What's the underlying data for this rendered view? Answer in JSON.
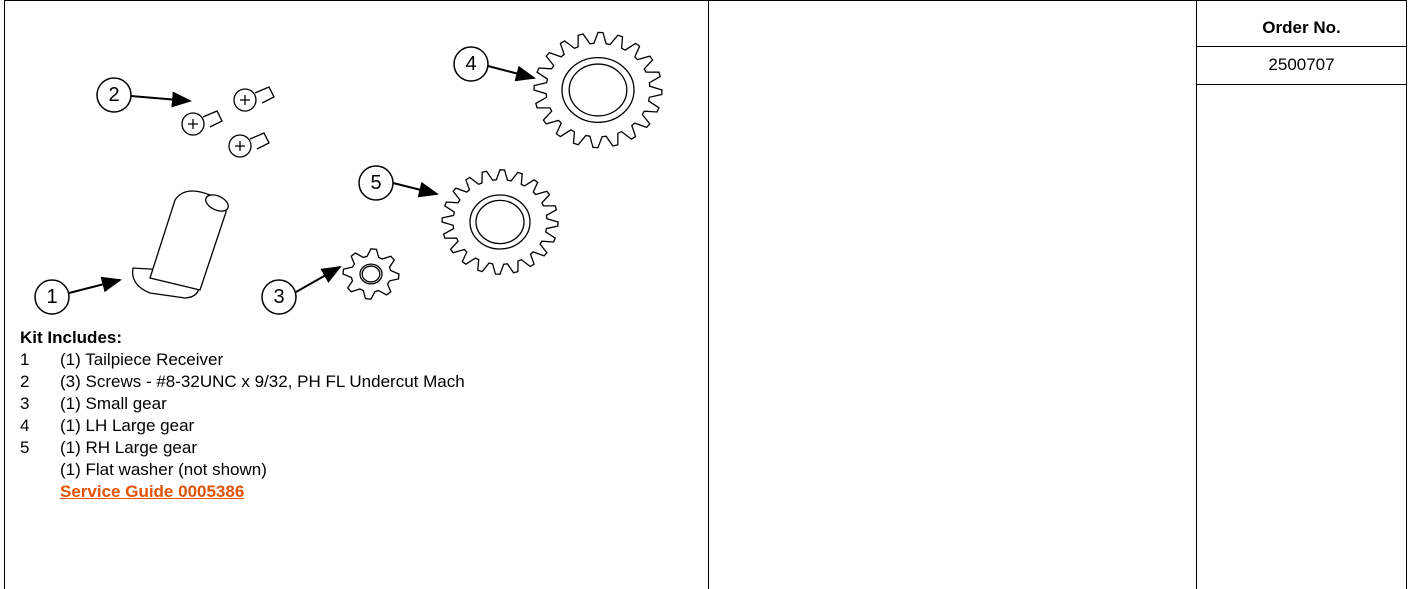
{
  "callouts": [
    "1",
    "2",
    "3",
    "4",
    "5"
  ],
  "kit": {
    "heading": "Kit Includes:",
    "items": [
      {
        "number": "1",
        "description": "(1) Tailpiece Receiver"
      },
      {
        "number": "2",
        "description": "(3) Screws - #8-32UNC x 9/32, PH FL Undercut Mach"
      },
      {
        "number": "3",
        "description": "(1) Small gear"
      },
      {
        "number": "4",
        "description": "(1) LH Large gear"
      },
      {
        "number": "5",
        "description": "(1) RH Large gear"
      },
      {
        "description": "(1) Flat washer (not shown)"
      }
    ],
    "link": "Service Guide 0005386"
  },
  "order_table": {
    "header": "Order No.",
    "order_number": "2500707"
  }
}
